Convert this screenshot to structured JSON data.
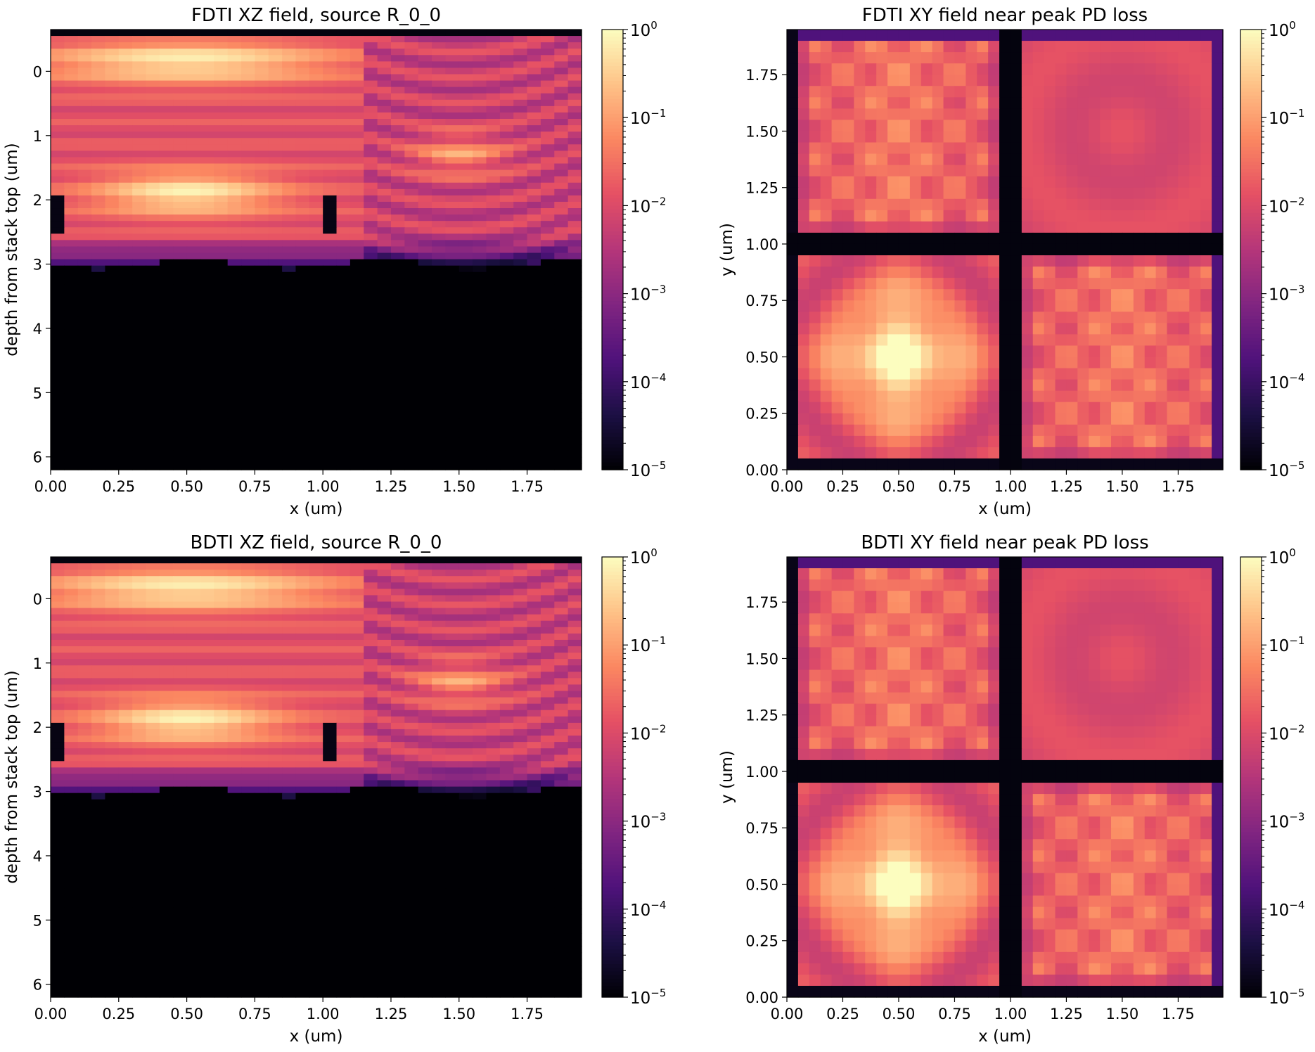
{
  "figure": {
    "colormap": "magma",
    "colormap_stops": [
      "#000004",
      "#1c1044",
      "#4f127b",
      "#812581",
      "#b5367a",
      "#e55064",
      "#fb8761",
      "#fec287",
      "#fcfdbf"
    ]
  },
  "chart_data": [
    {
      "type": "heatmap",
      "id": "fdti_xz",
      "title": "FDTI XZ field, source R_0_0",
      "xlabel": "x (um)",
      "ylabel": "depth from stack top (um)",
      "xlim": [
        0,
        1.95
      ],
      "ylim": [
        6.2,
        -0.65
      ],
      "y_inverted": true,
      "xticks": [
        "0.00",
        "0.25",
        "0.50",
        "0.75",
        "1.00",
        "1.25",
        "1.50",
        "1.75"
      ],
      "yticks": [
        "0",
        "1",
        "2",
        "3",
        "4",
        "5",
        "6"
      ],
      "color_scale": "log",
      "clim": [
        1e-05,
        1
      ],
      "colorbar": {
        "ticks": [
          {
            "base": "10",
            "exp": "0"
          },
          {
            "base": "10",
            "exp": "−1"
          },
          {
            "base": "10",
            "exp": "−2"
          },
          {
            "base": "10",
            "exp": "−3"
          },
          {
            "base": "10",
            "exp": "−4"
          },
          {
            "base": "10",
            "exp": "−5"
          }
        ]
      },
      "grid": false,
      "field_extent_depth_um": 3.0,
      "peak_locations_um": [
        {
          "x": 0.5,
          "depth": 0.0
        },
        {
          "x": 0.5,
          "depth": 1.9
        },
        {
          "x": 1.5,
          "depth": 1.3
        }
      ],
      "dark_trench_x_um": [
        0.03,
        1.0
      ],
      "trench_depth_um": [
        1.9,
        2.5
      ]
    },
    {
      "type": "heatmap",
      "id": "fdti_xy",
      "title": "FDTI XY field near peak PD loss",
      "xlabel": "x (um)",
      "ylabel": "y (um)",
      "xlim": [
        0,
        1.95
      ],
      "ylim": [
        0,
        1.95
      ],
      "xticks": [
        "0.00",
        "0.25",
        "0.50",
        "0.75",
        "1.00",
        "1.25",
        "1.50",
        "1.75"
      ],
      "yticks": [
        "0.00",
        "0.25",
        "0.50",
        "0.75",
        "1.00",
        "1.25",
        "1.50",
        "1.75"
      ],
      "color_scale": "log",
      "clim": [
        1e-05,
        1
      ],
      "colorbar": {
        "ticks": [
          {
            "base": "10",
            "exp": "0"
          },
          {
            "base": "10",
            "exp": "−1"
          },
          {
            "base": "10",
            "exp": "−2"
          },
          {
            "base": "10",
            "exp": "−3"
          },
          {
            "base": "10",
            "exp": "−4"
          },
          {
            "base": "10",
            "exp": "−5"
          }
        ]
      },
      "grid": false,
      "peak_location_um": {
        "x": 0.5,
        "y": 0.5
      },
      "isolation_grid_um": {
        "x": 1.0,
        "y": 1.0
      }
    },
    {
      "type": "heatmap",
      "id": "bdti_xz",
      "title": "BDTI XZ field, source R_0_0",
      "xlabel": "x (um)",
      "ylabel": "depth from stack top (um)",
      "xlim": [
        0,
        1.95
      ],
      "ylim": [
        6.2,
        -0.65
      ],
      "y_inverted": true,
      "xticks": [
        "0.00",
        "0.25",
        "0.50",
        "0.75",
        "1.00",
        "1.25",
        "1.50",
        "1.75"
      ],
      "yticks": [
        "0",
        "1",
        "2",
        "3",
        "4",
        "5",
        "6"
      ],
      "color_scale": "log",
      "clim": [
        1e-05,
        1
      ],
      "colorbar": {
        "ticks": [
          {
            "base": "10",
            "exp": "0"
          },
          {
            "base": "10",
            "exp": "−1"
          },
          {
            "base": "10",
            "exp": "−2"
          },
          {
            "base": "10",
            "exp": "−3"
          },
          {
            "base": "10",
            "exp": "−4"
          },
          {
            "base": "10",
            "exp": "−5"
          }
        ]
      },
      "grid": false,
      "field_extent_depth_um": 3.0,
      "peak_locations_um": [
        {
          "x": 0.5,
          "depth": -0.1
        },
        {
          "x": 0.5,
          "depth": 1.9
        },
        {
          "x": 1.5,
          "depth": 1.3
        }
      ],
      "dark_trench_x_um": [
        0.03,
        1.0
      ],
      "trench_depth_um": [
        1.9,
        2.5
      ]
    },
    {
      "type": "heatmap",
      "id": "bdti_xy",
      "title": "BDTI XY field near peak PD loss",
      "xlabel": "x (um)",
      "ylabel": "y (um)",
      "xlim": [
        0,
        1.95
      ],
      "ylim": [
        0,
        1.95
      ],
      "xticks": [
        "0.00",
        "0.25",
        "0.50",
        "0.75",
        "1.00",
        "1.25",
        "1.50",
        "1.75"
      ],
      "yticks": [
        "0.00",
        "0.25",
        "0.50",
        "0.75",
        "1.00",
        "1.25",
        "1.50",
        "1.75"
      ],
      "color_scale": "log",
      "clim": [
        1e-05,
        1
      ],
      "colorbar": {
        "ticks": [
          {
            "base": "10",
            "exp": "0"
          },
          {
            "base": "10",
            "exp": "−1"
          },
          {
            "base": "10",
            "exp": "−2"
          },
          {
            "base": "10",
            "exp": "−3"
          },
          {
            "base": "10",
            "exp": "−4"
          },
          {
            "base": "10",
            "exp": "−5"
          }
        ]
      },
      "grid": false,
      "peak_location_um": {
        "x": 0.5,
        "y": 0.5
      },
      "isolation_grid_um": {
        "x": 1.0,
        "y": 1.0
      }
    }
  ]
}
